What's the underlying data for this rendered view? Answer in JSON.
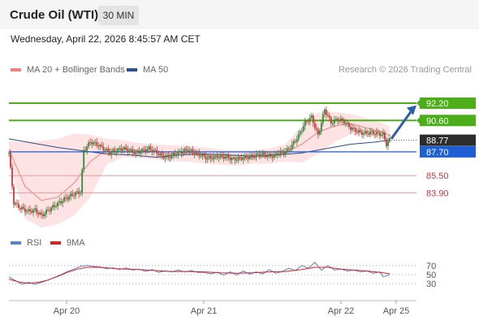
{
  "header": {
    "instrument": "Crude Oil (WTI)",
    "timeframe": "30 MIN"
  },
  "datetime": "Wednesday, April 22, 2026 8:45:57 AM CET",
  "legend": {
    "bollinger": {
      "label": "MA 20 + Bollinger Bands",
      "color": "#f08080"
    },
    "ma50": {
      "label": "MA 50",
      "color": "#2b4f8a"
    },
    "rsi": {
      "label": "RSI",
      "color": "#5b7fd6"
    },
    "rsi_ma": {
      "label": "9MA",
      "color": "#e02020"
    }
  },
  "attribution": "Research © 2026 Trading Central",
  "price_levels": [
    {
      "label": "92.20",
      "value": 92.2,
      "type": "resistance"
    },
    {
      "label": "90.60",
      "value": 90.6,
      "type": "resistance"
    },
    {
      "label": "88.77",
      "value": 88.77,
      "type": "last"
    },
    {
      "label": "87.70",
      "value": 87.7,
      "type": "pivot"
    },
    {
      "label": "85.50",
      "value": 85.5,
      "type": "support"
    },
    {
      "label": "83.90",
      "value": 83.9,
      "type": "support"
    }
  ],
  "rsi_levels": [
    {
      "label": "70",
      "value": 70
    },
    {
      "label": "50",
      "value": 50
    },
    {
      "label": "30",
      "value": 30
    }
  ],
  "colors": {
    "resistance": "#4caf1a",
    "last": "#2d2d2d",
    "pivot": "#1f5fd6",
    "support": "#d0343c",
    "bull_candle": "#2e8b3c",
    "bear_candle": "#c83a3a",
    "band_fill": "#fde3e3",
    "arrow": "#2d5fa8"
  },
  "chart_data": {
    "type": "candlestick",
    "x_ticks": [
      "Apr 20",
      "Apr 21",
      "Apr 22",
      "Apr 25"
    ],
    "y_range": [
      81.3,
      93.1
    ],
    "close_path": [
      [
        0,
        87.6
      ],
      [
        3,
        83.0
      ],
      [
        7,
        82.5
      ],
      [
        12,
        82.2
      ],
      [
        16,
        82.3
      ],
      [
        20,
        81.8
      ],
      [
        25,
        82.4
      ],
      [
        30,
        82.9
      ],
      [
        35,
        83.4
      ],
      [
        40,
        83.8
      ],
      [
        44,
        84.0
      ],
      [
        46,
        87.8
      ],
      [
        50,
        88.6
      ],
      [
        54,
        88.4
      ],
      [
        58,
        88.0
      ],
      [
        62,
        87.6
      ],
      [
        66,
        87.8
      ],
      [
        70,
        88.0
      ],
      [
        74,
        87.8
      ],
      [
        78,
        87.6
      ],
      [
        82,
        87.8
      ],
      [
        86,
        88.0
      ],
      [
        90,
        87.7
      ],
      [
        94,
        87.3
      ],
      [
        98,
        87.2
      ],
      [
        102,
        87.5
      ],
      [
        106,
        87.7
      ],
      [
        110,
        87.9
      ],
      [
        114,
        87.6
      ],
      [
        118,
        87.4
      ],
      [
        122,
        87.1
      ],
      [
        126,
        87.2
      ],
      [
        130,
        87.3
      ],
      [
        134,
        87.2
      ],
      [
        138,
        87.0
      ],
      [
        142,
        87.1
      ],
      [
        146,
        87.2
      ],
      [
        150,
        87.3
      ],
      [
        154,
        87.5
      ],
      [
        158,
        87.4
      ],
      [
        162,
        87.3
      ],
      [
        166,
        87.6
      ],
      [
        170,
        87.7
      ],
      [
        174,
        88.3
      ],
      [
        178,
        89.2
      ],
      [
        182,
        90.4
      ],
      [
        186,
        90.9
      ],
      [
        190,
        89.2
      ],
      [
        194,
        91.6
      ],
      [
        198,
        90.4
      ],
      [
        202,
        90.7
      ],
      [
        206,
        90.5
      ],
      [
        210,
        89.9
      ],
      [
        214,
        89.6
      ],
      [
        218,
        89.4
      ],
      [
        222,
        89.5
      ],
      [
        226,
        89.4
      ],
      [
        230,
        89.3
      ],
      [
        232,
        88.4
      ],
      [
        234,
        88.8
      ]
    ],
    "ma20": [
      [
        0,
        87.9
      ],
      [
        10,
        84.5
      ],
      [
        20,
        83.2
      ],
      [
        30,
        83.5
      ],
      [
        40,
        84.8
      ],
      [
        50,
        86.8
      ],
      [
        60,
        87.9
      ],
      [
        70,
        88.0
      ],
      [
        80,
        87.8
      ],
      [
        90,
        87.7
      ],
      [
        100,
        87.5
      ],
      [
        110,
        87.6
      ],
      [
        120,
        87.4
      ],
      [
        130,
        87.2
      ],
      [
        140,
        87.1
      ],
      [
        150,
        87.2
      ],
      [
        160,
        87.3
      ],
      [
        170,
        87.6
      ],
      [
        180,
        88.4
      ],
      [
        190,
        89.5
      ],
      [
        200,
        90.1
      ],
      [
        210,
        90.3
      ],
      [
        220,
        89.9
      ],
      [
        230,
        89.5
      ],
      [
        234,
        89.2
      ]
    ],
    "ma50": [
      [
        0,
        88.9
      ],
      [
        15,
        88.5
      ],
      [
        30,
        88.1
      ],
      [
        45,
        87.8
      ],
      [
        60,
        87.5
      ],
      [
        75,
        87.4
      ],
      [
        90,
        87.2
      ],
      [
        105,
        87.4
      ],
      [
        120,
        87.5
      ],
      [
        135,
        87.4
      ],
      [
        150,
        87.3
      ],
      [
        165,
        87.4
      ],
      [
        180,
        87.6
      ],
      [
        195,
        88.0
      ],
      [
        210,
        88.4
      ],
      [
        225,
        88.6
      ],
      [
        234,
        88.8
      ]
    ],
    "bollinger_upper": [
      [
        0,
        88.7
      ],
      [
        10,
        88.6
      ],
      [
        20,
        88.7
      ],
      [
        30,
        88.9
      ],
      [
        40,
        89.4
      ],
      [
        50,
        89.3
      ],
      [
        60,
        88.9
      ],
      [
        70,
        88.8
      ],
      [
        80,
        88.5
      ],
      [
        90,
        88.4
      ],
      [
        100,
        88.3
      ],
      [
        110,
        88.3
      ],
      [
        120,
        88.1
      ],
      [
        130,
        87.9
      ],
      [
        140,
        87.8
      ],
      [
        150,
        87.8
      ],
      [
        160,
        88.0
      ],
      [
        170,
        88.4
      ],
      [
        180,
        90.1
      ],
      [
        190,
        91.3
      ],
      [
        200,
        91.4
      ],
      [
        210,
        91.2
      ],
      [
        220,
        90.8
      ],
      [
        230,
        90.3
      ],
      [
        234,
        90.0
      ]
    ],
    "bollinger_lower": [
      [
        0,
        86.9
      ],
      [
        10,
        81.5
      ],
      [
        20,
        80.7
      ],
      [
        30,
        81.0
      ],
      [
        40,
        81.8
      ],
      [
        50,
        83.5
      ],
      [
        60,
        86.5
      ],
      [
        70,
        87.2
      ],
      [
        80,
        87.1
      ],
      [
        90,
        87.0
      ],
      [
        100,
        86.8
      ],
      [
        110,
        86.8
      ],
      [
        120,
        86.6
      ],
      [
        130,
        86.5
      ],
      [
        140,
        86.4
      ],
      [
        150,
        86.6
      ],
      [
        160,
        86.6
      ],
      [
        170,
        86.8
      ],
      [
        180,
        86.7
      ],
      [
        190,
        87.5
      ],
      [
        200,
        88.6
      ],
      [
        210,
        89.3
      ],
      [
        220,
        89.2
      ],
      [
        230,
        88.8
      ],
      [
        234,
        88.5
      ]
    ],
    "rsi": [
      [
        0,
        45
      ],
      [
        4,
        37
      ],
      [
        8,
        29
      ],
      [
        12,
        33
      ],
      [
        16,
        29
      ],
      [
        20,
        33
      ],
      [
        24,
        38
      ],
      [
        28,
        44
      ],
      [
        32,
        50
      ],
      [
        36,
        57
      ],
      [
        40,
        62
      ],
      [
        44,
        68
      ],
      [
        48,
        70
      ],
      [
        52,
        68
      ],
      [
        56,
        67
      ],
      [
        60,
        63
      ],
      [
        64,
        65
      ],
      [
        68,
        61
      ],
      [
        72,
        65
      ],
      [
        76,
        60
      ],
      [
        80,
        62
      ],
      [
        84,
        57
      ],
      [
        88,
        61
      ],
      [
        92,
        55
      ],
      [
        96,
        58
      ],
      [
        100,
        56
      ],
      [
        104,
        60
      ],
      [
        108,
        56
      ],
      [
        112,
        59
      ],
      [
        116,
        55
      ],
      [
        120,
        55
      ],
      [
        124,
        52
      ],
      [
        128,
        55
      ],
      [
        132,
        49
      ],
      [
        136,
        56
      ],
      [
        140,
        49
      ],
      [
        144,
        58
      ],
      [
        148,
        51
      ],
      [
        152,
        56
      ],
      [
        156,
        52
      ],
      [
        160,
        61
      ],
      [
        164,
        53
      ],
      [
        168,
        57
      ],
      [
        172,
        64
      ],
      [
        176,
        59
      ],
      [
        180,
        70
      ],
      [
        184,
        64
      ],
      [
        188,
        77
      ],
      [
        192,
        60
      ],
      [
        196,
        70
      ],
      [
        200,
        60
      ],
      [
        204,
        62
      ],
      [
        208,
        58
      ],
      [
        212,
        60
      ],
      [
        216,
        56
      ],
      [
        220,
        58
      ],
      [
        224,
        53
      ],
      [
        228,
        56
      ],
      [
        230,
        45
      ],
      [
        234,
        50
      ]
    ],
    "rsi_ma": [
      [
        0,
        40
      ],
      [
        6,
        34
      ],
      [
        12,
        31
      ],
      [
        18,
        33
      ],
      [
        24,
        38
      ],
      [
        30,
        46
      ],
      [
        36,
        55
      ],
      [
        42,
        62
      ],
      [
        48,
        66
      ],
      [
        54,
        66
      ],
      [
        60,
        65
      ],
      [
        66,
        63
      ],
      [
        72,
        62
      ],
      [
        80,
        61
      ],
      [
        90,
        59
      ],
      [
        100,
        57
      ],
      [
        110,
        57
      ],
      [
        120,
        56
      ],
      [
        130,
        54
      ],
      [
        140,
        53
      ],
      [
        150,
        54
      ],
      [
        160,
        56
      ],
      [
        170,
        57
      ],
      [
        180,
        61
      ],
      [
        188,
        66
      ],
      [
        196,
        66
      ],
      [
        204,
        62
      ],
      [
        212,
        60
      ],
      [
        220,
        58
      ],
      [
        228,
        55
      ],
      [
        234,
        52
      ]
    ],
    "rsi_range": [
      0,
      100
    ]
  }
}
